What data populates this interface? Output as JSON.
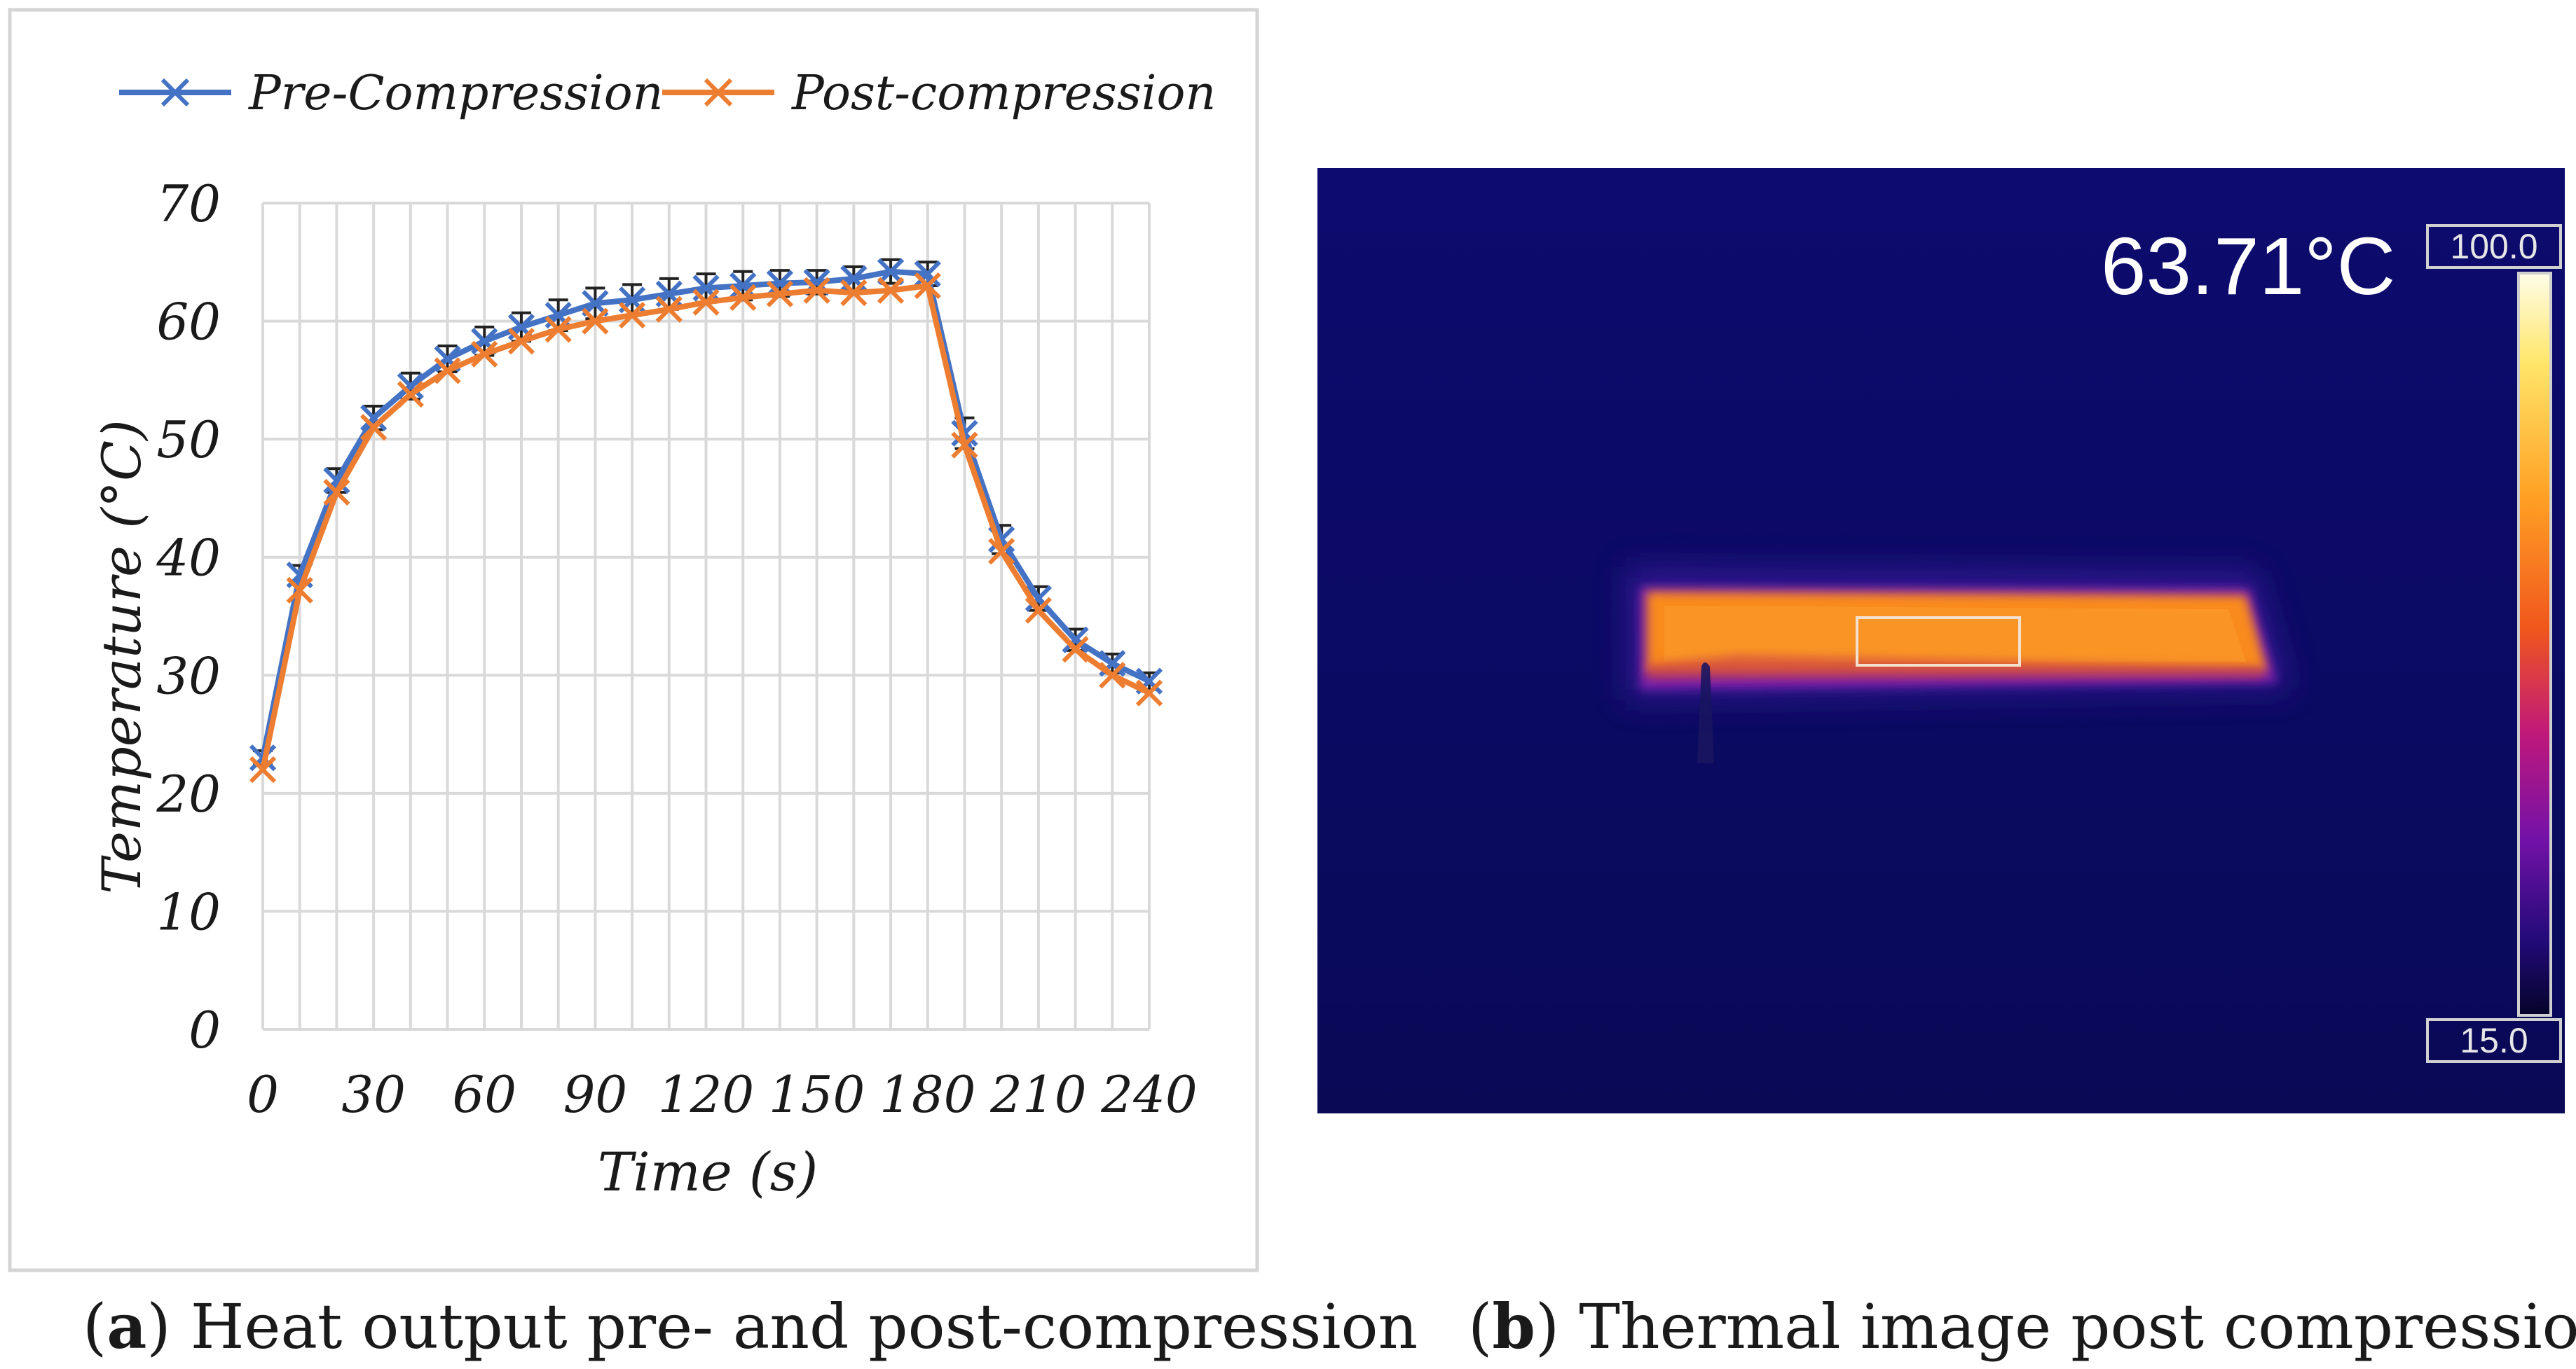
{
  "chart_data": {
    "type": "line",
    "title": "",
    "xlabel": "Time (s)",
    "ylabel": "Temperature (°C)",
    "xlim": [
      0,
      240
    ],
    "ylim": [
      0,
      70
    ],
    "xticks": [
      0,
      30,
      60,
      90,
      120,
      150,
      180,
      210,
      240
    ],
    "yticks": [
      0,
      10,
      20,
      30,
      40,
      50,
      60,
      70
    ],
    "grid": true,
    "legend": "top",
    "x": [
      0,
      10,
      20,
      30,
      40,
      50,
      60,
      70,
      80,
      90,
      100,
      110,
      120,
      130,
      140,
      150,
      160,
      170,
      180,
      190,
      200,
      210,
      220,
      230,
      240
    ],
    "series": [
      {
        "name": "Pre-Compression",
        "color": "#4472C4",
        "values": [
          23,
          38.5,
          46.5,
          51.8,
          54.5,
          56.8,
          58.3,
          59.5,
          60.5,
          61.5,
          61.8,
          62.3,
          62.8,
          63.0,
          63.2,
          63.3,
          63.6,
          64.2,
          64.0,
          50.5,
          41.5,
          36.5,
          33.0,
          31.0,
          29.5
        ],
        "error": [
          0.6,
          0.8,
          1.0,
          1.0,
          1.1,
          1.1,
          1.2,
          1.2,
          1.3,
          1.3,
          1.3,
          1.3,
          1.2,
          1.2,
          1.1,
          1.0,
          1.0,
          1.0,
          1.0,
          1.3,
          1.2,
          1.0,
          0.9,
          0.8,
          0.7
        ]
      },
      {
        "name": "Post-compression",
        "color": "#ED7D31",
        "values": [
          22,
          37.2,
          45.5,
          51.0,
          53.8,
          55.8,
          57.2,
          58.3,
          59.3,
          60.0,
          60.5,
          61.0,
          61.6,
          62.0,
          62.3,
          62.6,
          62.4,
          62.6,
          63.0,
          49.5,
          40.5,
          35.5,
          32.2,
          30.0,
          28.5
        ]
      }
    ]
  },
  "captions": {
    "a_label": "a",
    "a_text": " Heat output pre- and post-compression",
    "b_label": "b",
    "b_text": " Thermal image post compression"
  },
  "thermal": {
    "temperature_readout": "63.71°C",
    "scale_max": "100.0",
    "scale_min": "15.0",
    "colors": {
      "background": "#0b0a63",
      "hot": "#f98a1f",
      "glow": "#7a1da8"
    }
  }
}
